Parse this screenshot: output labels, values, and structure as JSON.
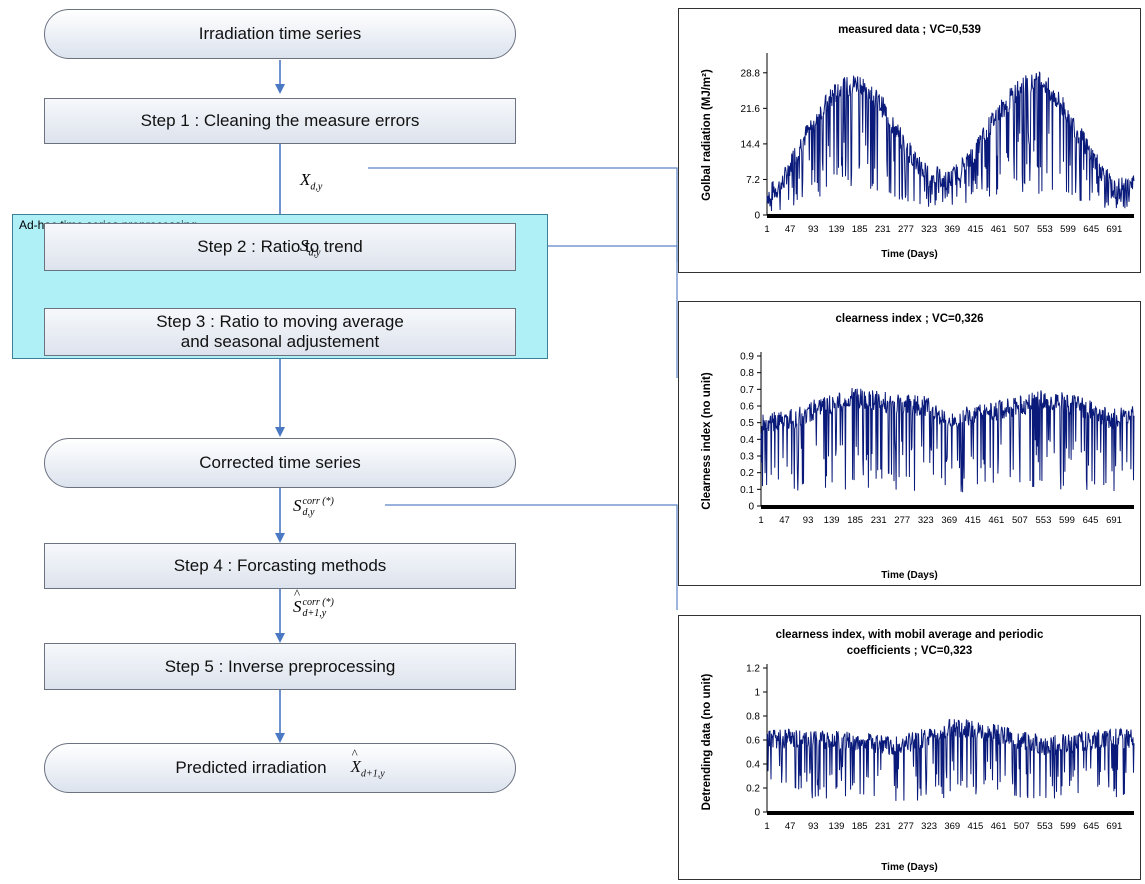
{
  "flowchart": {
    "start": "Irradiation time series",
    "step1": "Step 1 : Cleaning the measure errors",
    "group_label": "Ad-hoc time series preprocessing",
    "step2": "Step 2 : Ratio to trend",
    "step3_line1": "Step 3 : Ratio to moving average",
    "step3_line2": "and seasonal adjustement",
    "corrected": "Corrected time series",
    "step4": "Step 4 : Forcasting methods",
    "step5": "Step 5 : Inverse preprocessing",
    "end": "Predicted irradiation",
    "labels": {
      "x_base": "X",
      "x_sub": "d,y",
      "s_base": "S",
      "s_sub": "d,y",
      "scorr_base": "S",
      "scorr_sub": "d,y",
      "scorr_sup": "corr (*)",
      "shat_base": "S",
      "shat_sub": "d+1,y",
      "shat_sup": "corr (*)",
      "xhat_base": "X",
      "xhat_sub": "d+1,y"
    },
    "colors": {
      "arrow": "#4a78c2",
      "group_fill": "#aff0f7",
      "connector": "#5a84c5"
    }
  },
  "chart_data": [
    {
      "type": "line",
      "title": "measured data ; VC=0,539",
      "xlabel": "Time (Days)",
      "ylabel": "Golbal radiation (MJ/m²)",
      "ylim": [
        0,
        32
      ],
      "yticks": [
        "0",
        "7.2",
        "14.4",
        "21.6",
        "28.8"
      ],
      "ytick_values": [
        0,
        7.2,
        14.4,
        21.6,
        28.8
      ],
      "xticks": [
        "1",
        "47",
        "93",
        "139",
        "185",
        "231",
        "277",
        "323",
        "369",
        "415",
        "461",
        "507",
        "553",
        "599",
        "645",
        "691"
      ],
      "xlim": [
        1,
        730
      ],
      "color": "#0a1a7a",
      "series": [
        {
          "x": [
            1,
            30,
            60,
            100,
            140,
            185,
            230,
            275,
            320,
            365,
            410,
            455,
            505,
            550,
            595,
            640,
            690,
            730
          ],
          "values": [
            4,
            6,
            13,
            20,
            25,
            27,
            22,
            14,
            8,
            7,
            12,
            20,
            26,
            27,
            21,
            13,
            5,
            6
          ]
        }
      ]
    },
    {
      "type": "line",
      "title": "clearness index ; VC=0,326",
      "xlabel": "Time (Days)",
      "ylabel": "Clearness index (no unit)",
      "ylim": [
        0,
        0.9
      ],
      "yticks": [
        "0",
        "0.1",
        "0.2",
        "0.3",
        "0.4",
        "0.5",
        "0.6",
        "0.7",
        "0.8",
        "0.9"
      ],
      "ytick_values": [
        0,
        0.1,
        0.2,
        0.3,
        0.4,
        0.5,
        0.6,
        0.7,
        0.8,
        0.9
      ],
      "xticks": [
        "1",
        "47",
        "93",
        "139",
        "185",
        "231",
        "277",
        "323",
        "369",
        "415",
        "461",
        "507",
        "553",
        "599",
        "645",
        "691"
      ],
      "xlim": [
        1,
        730
      ],
      "color": "#0a1a7a",
      "series": [
        {
          "x": [
            1,
            60,
            120,
            185,
            250,
            320,
            365,
            430,
            500,
            560,
            620,
            690,
            730
          ],
          "values": [
            0.5,
            0.52,
            0.6,
            0.65,
            0.62,
            0.6,
            0.52,
            0.55,
            0.6,
            0.64,
            0.6,
            0.52,
            0.55
          ]
        }
      ]
    },
    {
      "type": "line",
      "title_line1": "clearness index, with mobil average and periodic",
      "title_line2": "coefficients ; VC=0,323",
      "xlabel": "Time (Days)",
      "ylabel": "Detrending data (no unit)",
      "ylim": [
        0,
        1.2
      ],
      "yticks": [
        "0",
        "0.2",
        "0.4",
        "0.6",
        "0.8",
        "1",
        "1.2"
      ],
      "ytick_values": [
        0,
        0.2,
        0.4,
        0.6,
        0.8,
        1.0,
        1.2
      ],
      "xticks": [
        "1",
        "47",
        "93",
        "139",
        "185",
        "231",
        "277",
        "323",
        "369",
        "415",
        "461",
        "507",
        "553",
        "599",
        "645",
        "691"
      ],
      "xlim": [
        1,
        730
      ],
      "color": "#0a1a7a",
      "series": [
        {
          "x": [
            1,
            60,
            120,
            185,
            250,
            320,
            365,
            430,
            500,
            560,
            620,
            690,
            730
          ],
          "values": [
            0.6,
            0.62,
            0.6,
            0.58,
            0.55,
            0.62,
            0.7,
            0.68,
            0.6,
            0.55,
            0.58,
            0.62,
            0.6
          ]
        }
      ]
    }
  ]
}
